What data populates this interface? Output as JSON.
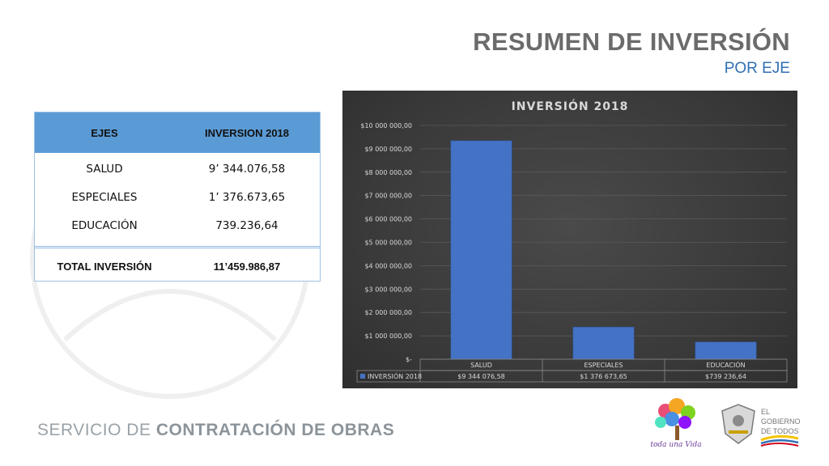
{
  "header": {
    "title": "RESUMEN DE INVERSIÓN",
    "subtitle": "POR EJE"
  },
  "table": {
    "headers": [
      "EJES",
      "INVERSION 2018"
    ],
    "rows": [
      [
        "SALUD",
        "9’ 344.076,58"
      ],
      [
        "ESPECIALES",
        "1’ 376.673,65"
      ],
      [
        "EDUCACIÓN",
        "739.236,64"
      ]
    ],
    "total": [
      "TOTAL INVERSIÓN",
      "11’459.986,87"
    ]
  },
  "chart_data": {
    "type": "bar",
    "title": "INVERSIÓN 2018",
    "categories": [
      "SALUD",
      "ESPECIALES",
      "EDUCACIÓN"
    ],
    "series": [
      {
        "name": "INVERSIÓN 2018",
        "values": [
          9344076.58,
          1376673.65,
          739236.64
        ],
        "labels": [
          "$9 344 076,58",
          "$1 376 673,65",
          "$739 236,64"
        ]
      }
    ],
    "ylim": [
      0,
      10000000
    ],
    "yticks": [
      {
        "v": 0,
        "label": "$-"
      },
      {
        "v": 1000000,
        "label": "$1 000 000,00"
      },
      {
        "v": 2000000,
        "label": "$2 000 000,00"
      },
      {
        "v": 3000000,
        "label": "$3 000 000,00"
      },
      {
        "v": 4000000,
        "label": "$4 000 000,00"
      },
      {
        "v": 5000000,
        "label": "$5 000 000,00"
      },
      {
        "v": 6000000,
        "label": "$6 000 000,00"
      },
      {
        "v": 7000000,
        "label": "$7 000 000,00"
      },
      {
        "v": 8000000,
        "label": "$8 000 000,00"
      },
      {
        "v": 9000000,
        "label": "$9 000 000,00"
      },
      {
        "v": 10000000,
        "label": "$10 000 000,00"
      }
    ],
    "grid": true,
    "data_table": true,
    "colors": {
      "bar": "#4472c4",
      "background": "#3a3a3a",
      "text": "#d9d9d9"
    }
  },
  "footer": {
    "org_light": "SERVICIO DE ",
    "org_bold": "CONTRATACIÓN DE OBRAS"
  },
  "logos": {
    "left_text": "toda una Vida",
    "right_text": [
      "EL",
      "GOBIERNO",
      "DE TODOS"
    ]
  }
}
